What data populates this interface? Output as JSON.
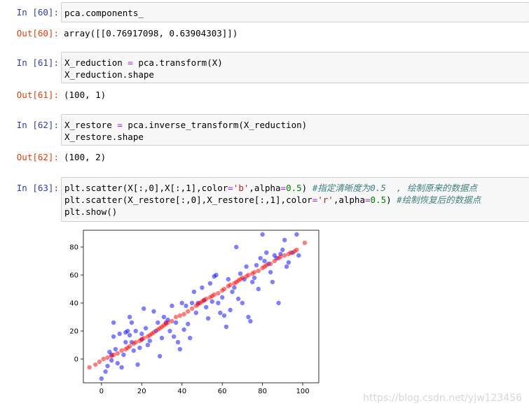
{
  "cells": [
    {
      "in_prompt": "In  [60]:",
      "code": [
        "pca.components_"
      ],
      "out_prompt": "Out[60]:",
      "output": "array([[0.76917098, 0.63904303]])"
    },
    {
      "in_prompt": "In  [61]:",
      "code": [
        "X_reduction = pca.transform(X)",
        "X_reduction.shape"
      ],
      "out_prompt": "Out[61]:",
      "output": "(100, 1)"
    },
    {
      "in_prompt": "In  [62]:",
      "code": [
        "X_restore = pca.inverse_transform(X_reduction)",
        "X_restore.shape"
      ],
      "out_prompt": "Out[62]:",
      "output": "(100, 2)"
    },
    {
      "in_prompt": "In  [63]:",
      "code_tokens": [
        [
          [
            "plt.scatter(X[:,0],X[:,1],color",
            "t"
          ],
          [
            "=",
            "op"
          ],
          [
            "'b'",
            "str"
          ],
          [
            ",alpha",
            "t"
          ],
          [
            "=",
            "op"
          ],
          [
            "0.5",
            "num"
          ],
          [
            ") ",
            "t"
          ],
          [
            "#指定清晰度为0.5  , 绘制原来的数据点",
            "cm"
          ]
        ],
        [
          [
            "plt.scatter(X_restore[:,0],X_restore[:,1],color",
            "t"
          ],
          [
            "=",
            "op"
          ],
          [
            "'r'",
            "str"
          ],
          [
            ",alpha",
            "t"
          ],
          [
            "=",
            "op"
          ],
          [
            "0.5",
            "num"
          ],
          [
            ") ",
            "t"
          ],
          [
            "#绘制恢复后的数据点",
            "cm"
          ]
        ],
        [
          [
            "plt.show()",
            "t"
          ]
        ]
      ]
    }
  ],
  "watermark": "https://blog.csdn.net/yjw123456",
  "chart_data": {
    "type": "scatter",
    "title": "",
    "xlabel": "",
    "ylabel": "",
    "xlim": [
      -9,
      108
    ],
    "ylim": [
      -17,
      92
    ],
    "xticks": [
      0,
      20,
      40,
      60,
      80,
      100
    ],
    "yticks": [
      0,
      20,
      40,
      60,
      80
    ],
    "grid": false,
    "series": [
      {
        "color": "#0000ff",
        "alpha": 0.5,
        "points": [
          [
            0,
            -14
          ],
          [
            2,
            -9
          ],
          [
            3,
            -5
          ],
          [
            4,
            5
          ],
          [
            5,
            3
          ],
          [
            5,
            -1
          ],
          [
            6,
            26
          ],
          [
            6,
            16
          ],
          [
            7,
            7
          ],
          [
            8,
            -3
          ],
          [
            9,
            18
          ],
          [
            10,
            -6
          ],
          [
            11,
            3
          ],
          [
            12,
            12
          ],
          [
            12,
            19
          ],
          [
            13,
            20
          ],
          [
            14,
            30
          ],
          [
            14,
            17
          ],
          [
            15,
            26
          ],
          [
            15,
            12
          ],
          [
            16,
            6
          ],
          [
            17,
            20
          ],
          [
            18,
            -4
          ],
          [
            19,
            8
          ],
          [
            20,
            18
          ],
          [
            20,
            14
          ],
          [
            21,
            36
          ],
          [
            22,
            22
          ],
          [
            23,
            10
          ],
          [
            24,
            13
          ],
          [
            26,
            34
          ],
          [
            27,
            20
          ],
          [
            28,
            26
          ],
          [
            29,
            2
          ],
          [
            30,
            15
          ],
          [
            31,
            30
          ],
          [
            32,
            26
          ],
          [
            33,
            28
          ],
          [
            34,
            20
          ],
          [
            35,
            38
          ],
          [
            36,
            16
          ],
          [
            37,
            26
          ],
          [
            38,
            12
          ],
          [
            39,
            7
          ],
          [
            40,
            40
          ],
          [
            41,
            21
          ],
          [
            42,
            38
          ],
          [
            43,
            25
          ],
          [
            44,
            15
          ],
          [
            45,
            40
          ],
          [
            46,
            48
          ],
          [
            47,
            33
          ],
          [
            48,
            40
          ],
          [
            50,
            51
          ],
          [
            51,
            42
          ],
          [
            52,
            37
          ],
          [
            53,
            29
          ],
          [
            54,
            54
          ],
          [
            55,
            41
          ],
          [
            56,
            59
          ],
          [
            57,
            60
          ],
          [
            58,
            40
          ],
          [
            59,
            33
          ],
          [
            60,
            44
          ],
          [
            61,
            31
          ],
          [
            62,
            23
          ],
          [
            63,
            57
          ],
          [
            64,
            35
          ],
          [
            65,
            48
          ],
          [
            66,
            51
          ],
          [
            67,
            80
          ],
          [
            68,
            43
          ],
          [
            69,
            61
          ],
          [
            70,
            40
          ],
          [
            71,
            57
          ],
          [
            72,
            66
          ],
          [
            73,
            30
          ],
          [
            74,
            27
          ],
          [
            75,
            55
          ],
          [
            76,
            58
          ],
          [
            77,
            67
          ],
          [
            78,
            50
          ],
          [
            79,
            72
          ],
          [
            80,
            89
          ],
          [
            81,
            70
          ],
          [
            82,
            76
          ],
          [
            83,
            68
          ],
          [
            84,
            62
          ],
          [
            85,
            55
          ],
          [
            86,
            74
          ],
          [
            87,
            72
          ],
          [
            88,
            40
          ],
          [
            89,
            75
          ],
          [
            90,
            78
          ],
          [
            91,
            85
          ],
          [
            92,
            66
          ],
          [
            93,
            69
          ],
          [
            95,
            76
          ],
          [
            97,
            89
          ],
          [
            98,
            74
          ]
        ]
      },
      {
        "color": "#ff0000",
        "alpha": 0.5,
        "points": [
          [
            -6,
            -6
          ],
          [
            -3,
            -4
          ],
          [
            -1,
            -2
          ],
          [
            1,
            0
          ],
          [
            3,
            1
          ],
          [
            5,
            2
          ],
          [
            6,
            3
          ],
          [
            8,
            4
          ],
          [
            10,
            6
          ],
          [
            12,
            7
          ],
          [
            13,
            8
          ],
          [
            14,
            9
          ],
          [
            16,
            11
          ],
          [
            17,
            12
          ],
          [
            19,
            13
          ],
          [
            20,
            14
          ],
          [
            21,
            15
          ],
          [
            23,
            16
          ],
          [
            24,
            17
          ],
          [
            25,
            18
          ],
          [
            26,
            19
          ],
          [
            28,
            21
          ],
          [
            29,
            22
          ],
          [
            30,
            23
          ],
          [
            31,
            24
          ],
          [
            32,
            25
          ],
          [
            33,
            26
          ],
          [
            35,
            27
          ],
          [
            37,
            30
          ],
          [
            39,
            31
          ],
          [
            41,
            32
          ],
          [
            43,
            34
          ],
          [
            45,
            36
          ],
          [
            47,
            38
          ],
          [
            48,
            39
          ],
          [
            49,
            40
          ],
          [
            50,
            41
          ],
          [
            51,
            42
          ],
          [
            52,
            43
          ],
          [
            54,
            44
          ],
          [
            55,
            45
          ],
          [
            56,
            46
          ],
          [
            58,
            47
          ],
          [
            60,
            49
          ],
          [
            61,
            50
          ],
          [
            63,
            52
          ],
          [
            64,
            53
          ],
          [
            66,
            54
          ],
          [
            67,
            55
          ],
          [
            68,
            56
          ],
          [
            69,
            57
          ],
          [
            70,
            58
          ],
          [
            72,
            59
          ],
          [
            73,
            60
          ],
          [
            75,
            61
          ],
          [
            76,
            62
          ],
          [
            78,
            63
          ],
          [
            80,
            65
          ],
          [
            81,
            66
          ],
          [
            82,
            67
          ],
          [
            84,
            68
          ],
          [
            86,
            70
          ],
          [
            88,
            72
          ],
          [
            89,
            73
          ],
          [
            91,
            74
          ],
          [
            93,
            75
          ],
          [
            94,
            76
          ],
          [
            96,
            77
          ],
          [
            97,
            78
          ],
          [
            101,
            83
          ]
        ]
      }
    ]
  }
}
